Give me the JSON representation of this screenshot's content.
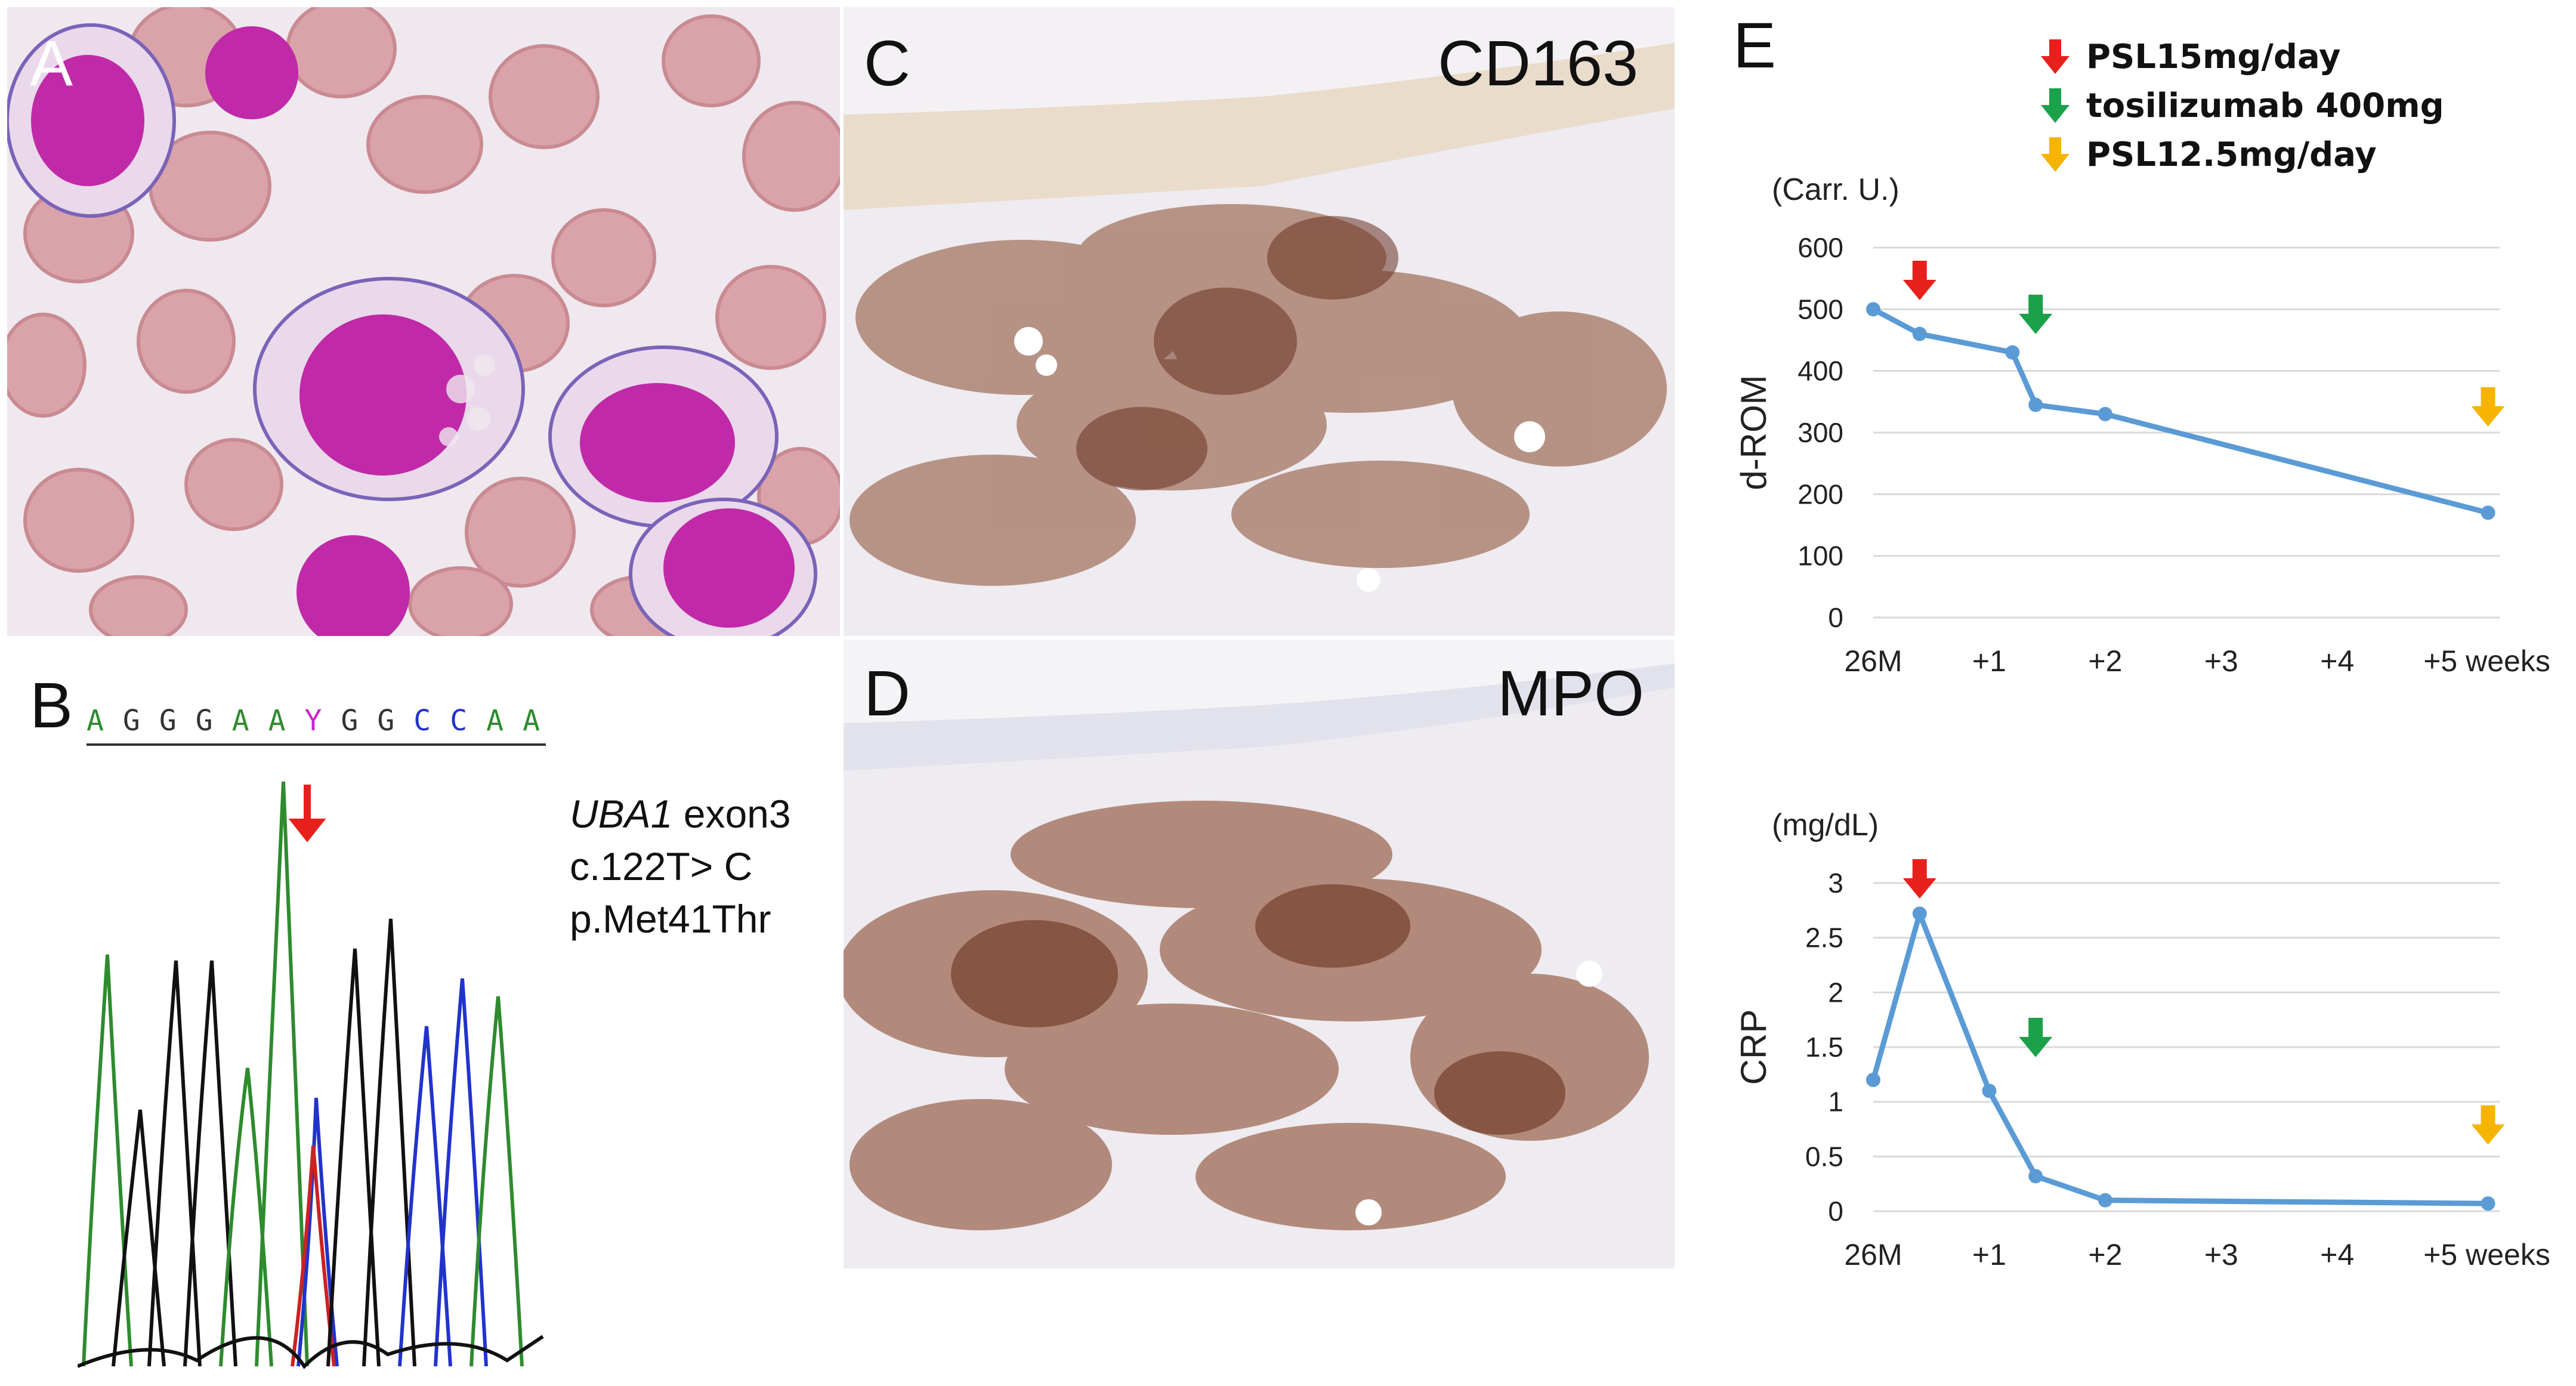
{
  "panels": {
    "a": {
      "letter": "A"
    },
    "b": {
      "letter": "B"
    },
    "c": {
      "letter": "C",
      "stain": "CD163"
    },
    "d": {
      "letter": "D",
      "stain": "MPO"
    },
    "e": {
      "letter": "E"
    }
  },
  "sequence": {
    "bases": [
      "A",
      "G",
      "G",
      "G",
      "A",
      "A",
      "Y",
      "G",
      "G",
      "C",
      "C",
      "A",
      "A"
    ],
    "colors": {
      "A": "#2e8b2e",
      "G": "#333333",
      "C": "#2233cc",
      "T": "#cc2222",
      "Y": "#cc22cc"
    }
  },
  "mutation": {
    "gene": "UBA1",
    "exon": " exon3",
    "cdna": "c.122T> C",
    "protein": "p.Met41Thr"
  },
  "legend": [
    {
      "label": "PSL15mg/day",
      "color": "#e8201c"
    },
    {
      "label": "tosilizumab 400mg",
      "color": "#1aa14a"
    },
    {
      "label": "PSL12.5mg/day",
      "color": "#f6b400"
    }
  ],
  "chart_data": [
    {
      "type": "line",
      "unit": "(Carr. U.)",
      "ylabel": "d-ROM",
      "xticks": [
        "26M",
        "+1",
        "+2",
        "+3",
        "+4",
        "+5 weeks"
      ],
      "xlim": [
        0,
        5.4
      ],
      "ylim": [
        0,
        600
      ],
      "yticks": [
        "0",
        "100",
        "200",
        "300",
        "400",
        "500",
        "600"
      ],
      "grid": true,
      "x": [
        0,
        0.4,
        1.2,
        1.4,
        2.0,
        5.3
      ],
      "values": [
        500,
        460,
        430,
        345,
        330,
        170
      ],
      "line_color": "#5b9bd5",
      "arrows": [
        {
          "x": 0.4,
          "value": 540,
          "color": "#e8201c"
        },
        {
          "x": 1.4,
          "value": 485,
          "color": "#1aa14a"
        },
        {
          "x": 5.3,
          "value": 335,
          "color": "#f6b400"
        }
      ]
    },
    {
      "type": "line",
      "unit": "(mg/dL)",
      "ylabel": "CRP",
      "xticks": [
        "26M",
        "+1",
        "+2",
        "+3",
        "+4",
        "+5 weeks"
      ],
      "xlim": [
        0,
        5.4
      ],
      "ylim": [
        0,
        3
      ],
      "yticks": [
        "0",
        "0.5",
        "1",
        "1.5",
        "2",
        "2.5",
        "3"
      ],
      "grid": true,
      "x": [
        0,
        0.4,
        1.0,
        1.4,
        2.0,
        5.3
      ],
      "values": [
        1.2,
        2.72,
        1.1,
        0.32,
        0.1,
        0.07
      ],
      "line_color": "#5b9bd5",
      "arrows": [
        {
          "x": 0.4,
          "value": 3.0,
          "color": "#e8201c"
        },
        {
          "x": 1.4,
          "value": 1.55,
          "color": "#1aa14a"
        },
        {
          "x": 5.3,
          "value": 0.75,
          "color": "#f6b400"
        }
      ]
    }
  ]
}
